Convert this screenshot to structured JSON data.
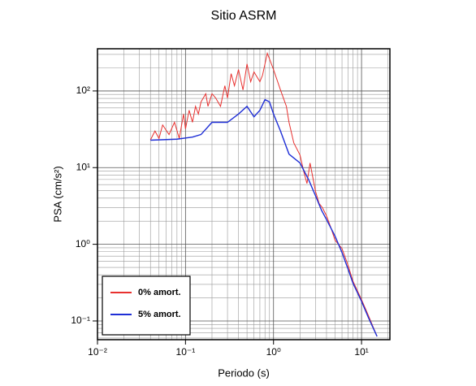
{
  "chart_data": {
    "type": "line",
    "title": "Sitio ASRM",
    "x_label": "Periodo (s)",
    "y_label": "PSA (cm/s²)",
    "log_x": true,
    "log_y": true,
    "grid": true,
    "minor_grid": true,
    "legend_position": "lower left",
    "xlim": [
      0.01,
      21
    ],
    "ylim": [
      0.057,
      355
    ],
    "xticks": [
      {
        "value": 0.01,
        "label": "10⁻²"
      },
      {
        "value": 0.1,
        "label": "10⁻¹"
      },
      {
        "value": 1,
        "label": "10⁰"
      },
      {
        "value": 10,
        "label": "10¹"
      }
    ],
    "yticks": [
      {
        "value": 0.1,
        "label": "10⁻¹"
      },
      {
        "value": 1,
        "label": "10⁰"
      },
      {
        "value": 10,
        "label": "10¹"
      },
      {
        "value": 100,
        "label": "10²"
      }
    ],
    "series": [
      {
        "name": "0% amort.",
        "color": "#e8312f",
        "x": [
          0.04,
          0.045,
          0.05,
          0.055,
          0.065,
          0.075,
          0.085,
          0.095,
          0.1,
          0.11,
          0.12,
          0.13,
          0.14,
          0.15,
          0.17,
          0.18,
          0.2,
          0.22,
          0.25,
          0.28,
          0.3,
          0.33,
          0.36,
          0.4,
          0.45,
          0.5,
          0.55,
          0.6,
          0.7,
          0.75,
          0.85,
          0.9,
          1.0,
          1.2,
          1.4,
          1.5,
          1.7,
          2,
          2.2,
          2.4,
          2.6,
          3,
          3.3,
          3.6,
          4,
          4.5,
          5,
          6,
          7,
          8,
          10,
          12,
          15
        ],
        "values": [
          23,
          30,
          24,
          36,
          27,
          39,
          24,
          50,
          32,
          56,
          39,
          63,
          50,
          72,
          92,
          63,
          92,
          81,
          63,
          117,
          81,
          168,
          117,
          190,
          103,
          225,
          132,
          177,
          132,
          160,
          310,
          262,
          190,
          103,
          63,
          39,
          21,
          14.6,
          9,
          6.2,
          11.5,
          4.9,
          3.4,
          3,
          2.35,
          1.63,
          1.13,
          0.88,
          0.54,
          0.33,
          0.19,
          0.117,
          0.063
        ]
      },
      {
        "name": "5% amort.",
        "color": "#1f2fd6",
        "x": [
          0.04,
          0.08,
          0.12,
          0.15,
          0.2,
          0.3,
          0.4,
          0.5,
          0.6,
          0.7,
          0.8,
          0.9,
          1.0,
          1.2,
          1.5,
          2,
          2.5,
          3,
          3.5,
          4,
          5,
          6,
          7,
          8,
          10,
          12,
          15
        ],
        "values": [
          22.8,
          23.5,
          25,
          27,
          39,
          39,
          50,
          63,
          46,
          56,
          77,
          72,
          50,
          30,
          15,
          11.5,
          7,
          4.3,
          2.8,
          2.1,
          1.28,
          0.78,
          0.48,
          0.31,
          0.18,
          0.11,
          0.063
        ]
      }
    ]
  }
}
